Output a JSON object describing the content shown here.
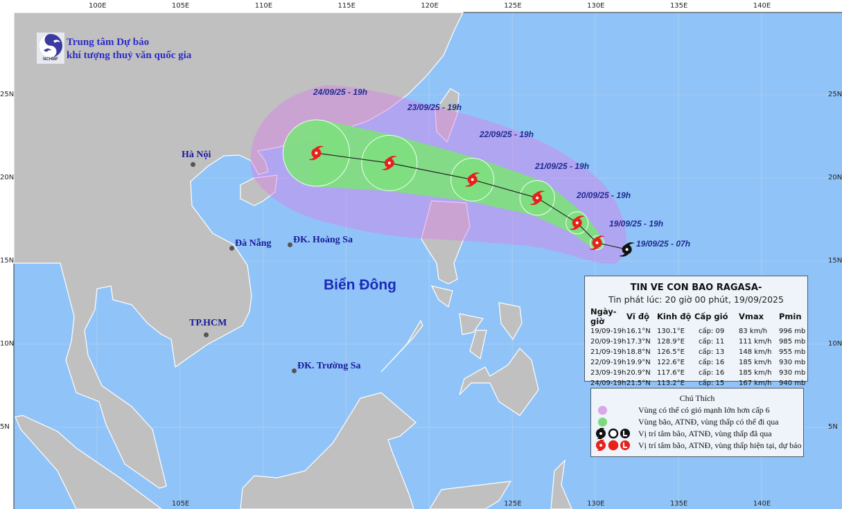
{
  "header": {
    "org_line1": "Trung tâm Dự báo",
    "org_line2": "khí tượng thuỷ văn quốc gia",
    "logo_text": "NCHMF"
  },
  "axes": {
    "top_lon": [
      "100E",
      "105E",
      "110E",
      "115E",
      "120E",
      "125E",
      "130E",
      "135E",
      "140E"
    ],
    "bottom_lon": [
      "105E",
      "125E",
      "130E",
      "135E",
      "140E"
    ],
    "lat": [
      "25N",
      "20N",
      "15N",
      "10N",
      "5N"
    ]
  },
  "places": {
    "hanoi": "Hà Nội",
    "danang": "Đà Nẵng",
    "hoangsa": "ĐK. Hoàng Sa",
    "hcm": "TP.HCM",
    "truongsa": "ĐK. Trường Sa",
    "sea": "Biển Đông"
  },
  "track": {
    "past": {
      "label": "19/09/25 - 07h",
      "lon": 131.9,
      "lat": 15.7
    },
    "points": [
      {
        "label": "19/09/25 - 19h",
        "lon": 130.1,
        "lat": 16.1
      },
      {
        "label": "20/09/25 - 19h",
        "lon": 128.9,
        "lat": 17.3
      },
      {
        "label": "21/09/25 - 19h",
        "lon": 126.5,
        "lat": 18.8
      },
      {
        "label": "22/09/25 - 19h",
        "lon": 122.6,
        "lat": 19.9
      },
      {
        "label": "23/09/25 - 19h",
        "lon": 117.6,
        "lat": 20.9
      },
      {
        "label": "24/09/25 - 19h",
        "lon": 113.2,
        "lat": 21.5
      }
    ]
  },
  "colors": {
    "sea": "#90c4f8",
    "land": "#c0c0c0",
    "strong_wind_zone": "#d880e8",
    "storm_zone": "#7fdf7f",
    "forecast_icon": "#e8201c",
    "past_icon": "#111111"
  },
  "info": {
    "title": "TIN VE CON BAO RAGASA-",
    "issued": "Tin phát lúc: 20 giờ 00 phút, 19/09/2025",
    "columns": [
      "Ngày-giờ",
      "Vĩ độ",
      "Kinh độ",
      "Cấp gió",
      "Vmax",
      "Pmin"
    ],
    "rows": [
      [
        "19/09-19h",
        "16.1°N",
        "130.1°E",
        "cấp: 09",
        "83 km/h",
        "996 mb"
      ],
      [
        "20/09-19h",
        "17.3°N",
        "128.9°E",
        "cấp: 11",
        "111 km/h",
        "985 mb"
      ],
      [
        "21/09-19h",
        "18.8°N",
        "126.5°E",
        "cấp: 13",
        "148 km/h",
        "955 mb"
      ],
      [
        "22/09-19h",
        "19.9°N",
        "122.6°E",
        "cấp: 16",
        "185 km/h",
        "930 mb"
      ],
      [
        "23/09-19h",
        "20.9°N",
        "117.6°E",
        "cấp: 16",
        "185 km/h",
        "930 mb"
      ],
      [
        "24/09-19h",
        "21.5°N",
        "113.2°E",
        "cấp: 15",
        "167 km/h",
        "940 mb"
      ]
    ]
  },
  "legend": {
    "title": "Chú Thích",
    "items": [
      {
        "icon": "pink-circle",
        "text": "Vùng có thể có gió mạnh lớn hơn cấp 6"
      },
      {
        "icon": "green-circle",
        "text": "Vùng bão, ATNĐ, vùng thấp có thể đi qua"
      },
      {
        "icon": "black-storm-icons",
        "text": "Vị trí tâm bão, ATNĐ, vùng thấp đã qua"
      },
      {
        "icon": "red-storm-icons",
        "text": "Vị trí tâm bão, ATNĐ, vùng thấp hiện tại, dự báo"
      }
    ]
  }
}
